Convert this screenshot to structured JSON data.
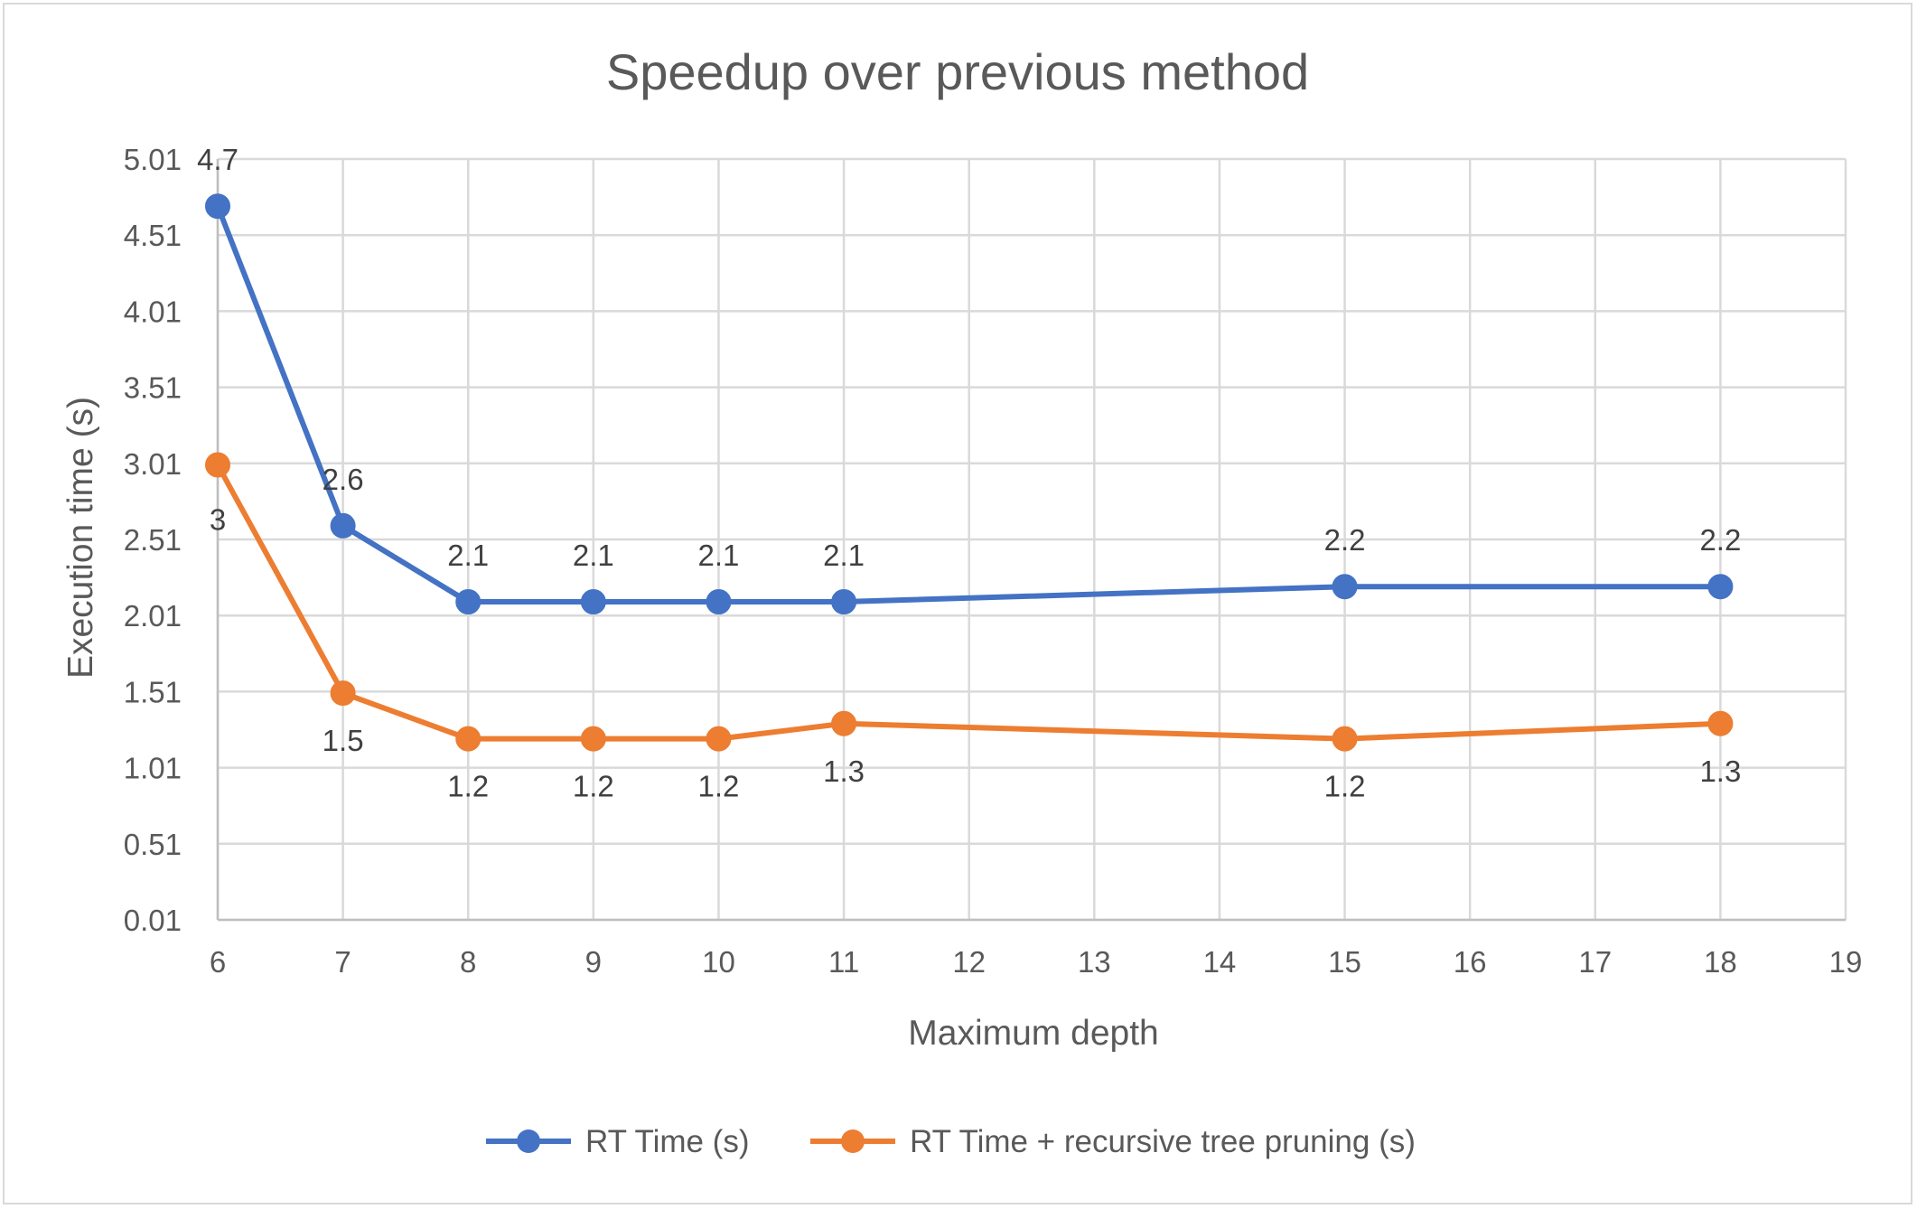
{
  "chart_data": {
    "type": "line",
    "title": "Speedup over previous method",
    "xlabel": "Maximum depth",
    "ylabel": "Execution time (s)",
    "xlim": [
      6,
      19
    ],
    "ylim": [
      0.01,
      5.01
    ],
    "x_ticks": [
      "6",
      "7",
      "8",
      "9",
      "10",
      "11",
      "12",
      "13",
      "14",
      "15",
      "16",
      "17",
      "18",
      "19"
    ],
    "y_ticks": [
      "0.01",
      "0.51",
      "1.01",
      "1.51",
      "2.01",
      "2.51",
      "3.01",
      "3.51",
      "4.01",
      "4.51",
      "5.01"
    ],
    "grid": true,
    "legend_position": "bottom",
    "series": [
      {
        "name": "RT Time (s)",
        "color": "#4472c4",
        "x": [
          6,
          7,
          8,
          9,
          10,
          11,
          15,
          18
        ],
        "values": [
          4.7,
          2.6,
          2.1,
          2.1,
          2.1,
          2.1,
          2.2,
          2.2
        ],
        "labels": [
          "4.7",
          "2.6",
          "2.1",
          "2.1",
          "2.1",
          "2.1",
          "2.2",
          "2.2"
        ],
        "label_position": "above"
      },
      {
        "name": "RT Time + recursive tree pruning (s)",
        "color": "#ed7d31",
        "x": [
          6,
          7,
          8,
          9,
          10,
          11,
          15,
          18
        ],
        "values": [
          3.0,
          1.5,
          1.2,
          1.2,
          1.2,
          1.3,
          1.2,
          1.3
        ],
        "labels": [
          "3",
          "1.5",
          "1.2",
          "1.2",
          "1.2",
          "1.3",
          "1.2",
          "1.3"
        ],
        "label_position": "below"
      }
    ]
  }
}
